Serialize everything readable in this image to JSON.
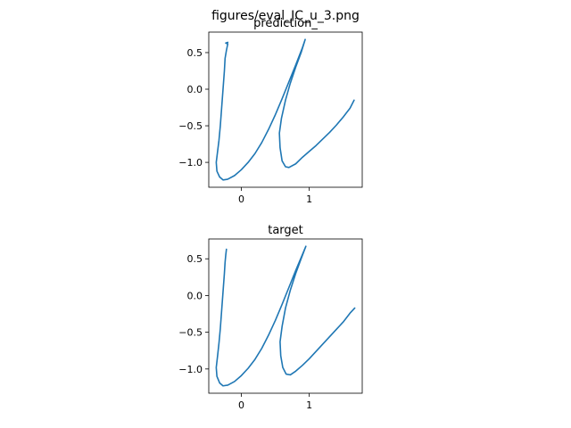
{
  "figure": {
    "suptitle": "figures/eval_IC_u_3.png"
  },
  "colors": {
    "line": "#1f77b4",
    "axes": "#000000",
    "background": "#ffffff"
  },
  "chart_data": [
    {
      "type": "line",
      "title": "prediction_",
      "xlabel": "",
      "ylabel": "",
      "xlim": [
        -0.48,
        1.78
      ],
      "ylim": [
        -1.34,
        0.78
      ],
      "xticks": [
        0,
        1
      ],
      "xtick_labels": [
        "0",
        "1"
      ],
      "yticks": [
        -1.0,
        -0.5,
        0.0,
        0.5
      ],
      "ytick_labels": [
        "−1.0",
        "−0.5",
        "0.0",
        "0.5"
      ],
      "grid": false,
      "series": [
        {
          "x": [
            -0.2,
            -0.23,
            -0.2,
            -0.22,
            -0.24,
            -0.25,
            -0.27,
            -0.29,
            -0.31,
            -0.33,
            -0.35,
            -0.37,
            -0.36,
            -0.32,
            -0.27,
            -0.2,
            -0.1,
            0.0,
            0.1,
            0.2,
            0.3,
            0.4,
            0.5,
            0.6,
            0.7,
            0.8,
            0.9,
            0.94,
            0.88,
            0.8,
            0.72,
            0.65,
            0.59,
            0.56,
            0.57,
            0.6,
            0.65,
            0.7,
            0.8,
            0.9,
            1.0,
            1.1,
            1.2,
            1.3,
            1.4,
            1.5,
            1.6,
            1.66
          ],
          "y": [
            0.64,
            0.63,
            0.62,
            0.53,
            0.42,
            0.25,
            0.0,
            -0.25,
            -0.5,
            -0.7,
            -0.85,
            -1.0,
            -1.12,
            -1.2,
            -1.24,
            -1.23,
            -1.18,
            -1.1,
            -1.0,
            -0.88,
            -0.73,
            -0.55,
            -0.35,
            -0.13,
            0.1,
            0.33,
            0.57,
            0.68,
            0.5,
            0.3,
            0.08,
            -0.15,
            -0.4,
            -0.6,
            -0.8,
            -0.98,
            -1.06,
            -1.07,
            -1.02,
            -0.93,
            -0.85,
            -0.77,
            -0.68,
            -0.59,
            -0.49,
            -0.38,
            -0.26,
            -0.15
          ]
        }
      ]
    },
    {
      "type": "line",
      "title": "target",
      "xlabel": "",
      "ylabel": "",
      "xlim": [
        -0.48,
        1.78
      ],
      "ylim": [
        -1.33,
        0.77
      ],
      "xticks": [
        0,
        1
      ],
      "xtick_labels": [
        "0",
        "1"
      ],
      "yticks": [
        -1.0,
        -0.5,
        0.0,
        0.5
      ],
      "ytick_labels": [
        "−1.0",
        "−0.5",
        "0.0",
        "0.5"
      ],
      "grid": false,
      "series": [
        {
          "x": [
            -0.22,
            -0.23,
            -0.24,
            -0.25,
            -0.27,
            -0.29,
            -0.31,
            -0.33,
            -0.35,
            -0.37,
            -0.36,
            -0.32,
            -0.27,
            -0.2,
            -0.1,
            0.0,
            0.1,
            0.2,
            0.3,
            0.4,
            0.5,
            0.6,
            0.7,
            0.8,
            0.9,
            0.95,
            0.88,
            0.8,
            0.72,
            0.65,
            0.6,
            0.57,
            0.58,
            0.61,
            0.66,
            0.72,
            0.8,
            0.9,
            1.0,
            1.1,
            1.2,
            1.3,
            1.4,
            1.5,
            1.6,
            1.67
          ],
          "y": [
            0.63,
            0.55,
            0.45,
            0.3,
            0.05,
            -0.2,
            -0.45,
            -0.65,
            -0.82,
            -0.98,
            -1.1,
            -1.19,
            -1.23,
            -1.22,
            -1.17,
            -1.09,
            -0.99,
            -0.87,
            -0.72,
            -0.54,
            -0.34,
            -0.12,
            0.11,
            0.34,
            0.56,
            0.67,
            0.5,
            0.3,
            0.07,
            -0.17,
            -0.42,
            -0.63,
            -0.82,
            -0.98,
            -1.07,
            -1.08,
            -1.03,
            -0.95,
            -0.86,
            -0.76,
            -0.66,
            -0.56,
            -0.46,
            -0.36,
            -0.24,
            -0.17
          ]
        }
      ]
    }
  ]
}
